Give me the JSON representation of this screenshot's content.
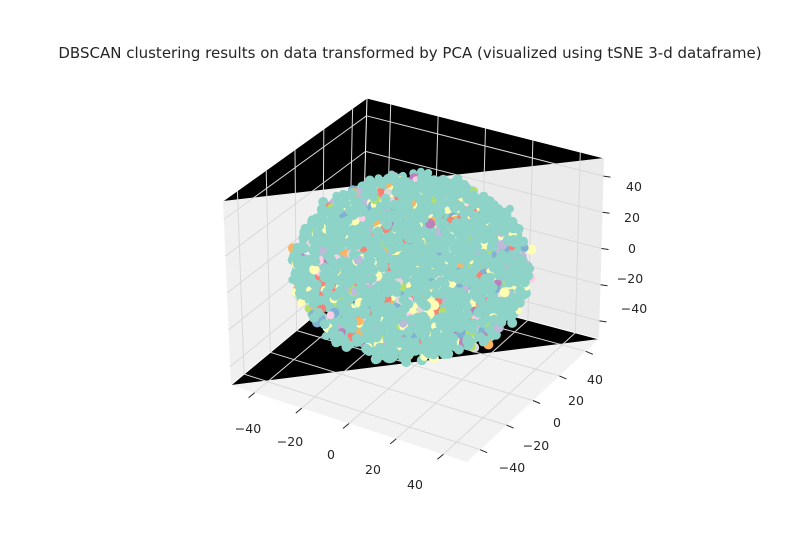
{
  "chart_data": {
    "type": "scatter",
    "projection": "3d",
    "title": "DBSCAN clustering results on data transformed by PCA (visualized using tSNE 3-d dataframe)",
    "xlabel": "",
    "ylabel": "",
    "zlabel": "",
    "x_ticks": [
      "−40",
      "−20",
      "0",
      "20",
      "40"
    ],
    "y_ticks": [
      "−40",
      "−20",
      "0",
      "20",
      "40"
    ],
    "z_ticks": [
      "−40",
      "−20",
      "0",
      "20",
      "40"
    ],
    "xlim": [
      -50,
      50
    ],
    "ylim": [
      -50,
      50
    ],
    "zlim": [
      -50,
      50
    ],
    "grid": true,
    "legend": "none",
    "point_cloud": {
      "shape": "roughly spherical blob",
      "approx_radius": 45,
      "dominant_color": "#8dd3c7",
      "cluster_colors": [
        "#8dd3c7",
        "#ffffb3",
        "#bebada",
        "#fb8072",
        "#80b1d3",
        "#fdb462",
        "#b3de69",
        "#fccde5",
        "#d9d9d9",
        "#bc80bd"
      ]
    }
  }
}
